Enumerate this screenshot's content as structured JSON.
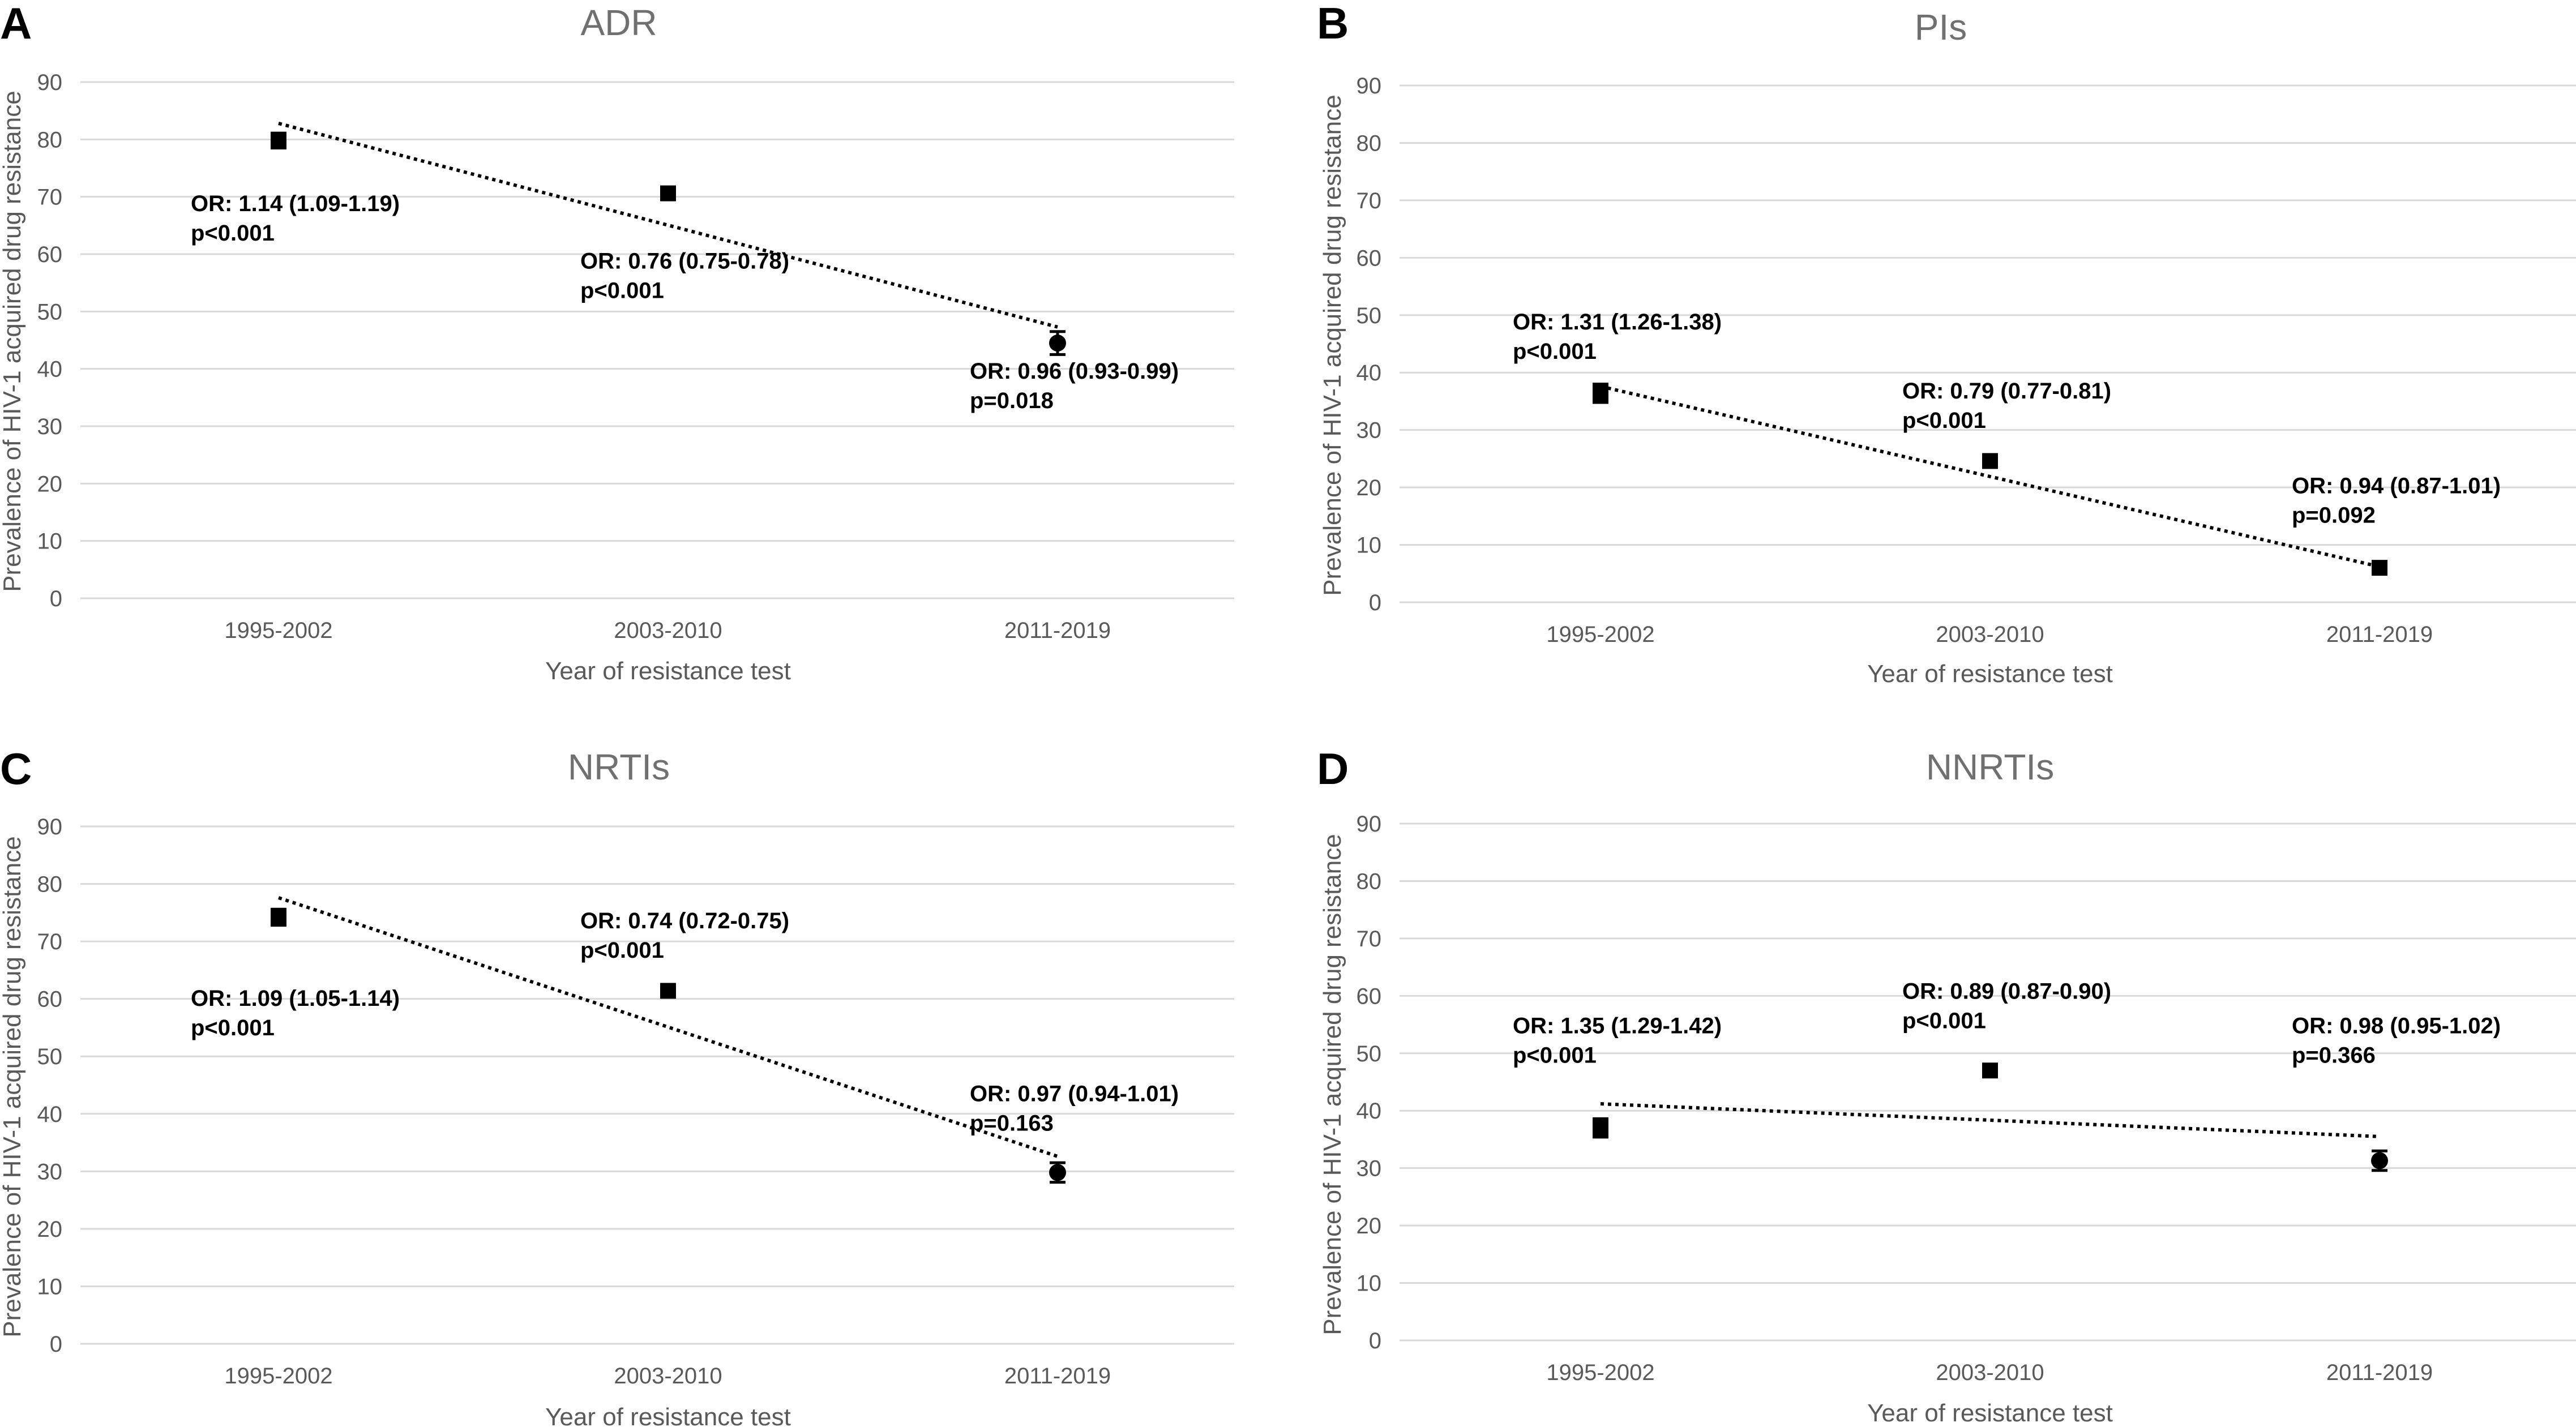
{
  "colors": {
    "marker": "#000000",
    "grid": "#d9d9d9",
    "tick_text": "#595959",
    "title_text": "#707070"
  },
  "chart_data": [
    {
      "panel": "A",
      "type": "scatter",
      "title": "ADR",
      "xlabel": "Year of resistance test",
      "ylabel": "Prevalence of HIV-1 acquired drug resistance",
      "categories": [
        "1995-2002",
        "2003-2010",
        "2011-2019"
      ],
      "ylim": [
        0,
        90
      ],
      "yticks": [
        0,
        10,
        20,
        30,
        40,
        50,
        60,
        70,
        80,
        90
      ],
      "grid": true,
      "values": [
        79.8,
        70.6,
        44.5
      ],
      "err": [
        1.3,
        0.8,
        2.0
      ],
      "markers": [
        "square",
        "square",
        "circle"
      ],
      "trend": {
        "start": 82.8,
        "end": 47.3
      },
      "annotations": [
        {
          "category": 0,
          "y": 67.5,
          "line1": "OR: 1.14 (1.09-1.19)",
          "line2": "p<0.001"
        },
        {
          "category": 1,
          "y": 57.5,
          "line1": "OR: 0.76 (0.75-0.78)",
          "line2": "p<0.001"
        },
        {
          "category": 2,
          "y": 38.3,
          "line1": "OR: 0.96 (0.93-0.99)",
          "line2": "p=0.018"
        }
      ]
    },
    {
      "panel": "B",
      "type": "scatter",
      "title": "PIs",
      "xlabel": "Year of resistance test",
      "ylabel": "Prevalence of HIV-1 acquired drug resistance",
      "categories": [
        "1995-2002",
        "2003-2010",
        "2011-2019"
      ],
      "ylim": [
        0,
        90
      ],
      "yticks": [
        0,
        10,
        20,
        30,
        40,
        50,
        60,
        70,
        80,
        90
      ],
      "grid": true,
      "values": [
        36.4,
        24.6,
        6.0
      ],
      "err": [
        1.6,
        0.8,
        0.8
      ],
      "markers": [
        "square",
        "square",
        "square"
      ],
      "trend": {
        "start": 37.6,
        "end": 6.2
      },
      "annotations": [
        {
          "category": 0,
          "y": 47.5,
          "line1": "OR: 1.31 (1.26-1.38)",
          "line2": "p<0.001"
        },
        {
          "category": 1,
          "y": 35.5,
          "line1": "OR: 0.79 (0.77-0.81)",
          "line2": "p<0.001"
        },
        {
          "category": 2,
          "y": 19.0,
          "line1": "OR: 0.94 (0.87-1.01)",
          "line2": "p=0.092"
        }
      ]
    },
    {
      "panel": "C",
      "type": "scatter",
      "title": "NRTIs",
      "xlabel": "Year of resistance test",
      "ylabel": "Prevalence of HIV-1 acquired drug resistance",
      "categories": [
        "1995-2002",
        "2003-2010",
        "2011-2019"
      ],
      "ylim": [
        0,
        90
      ],
      "yticks": [
        0,
        10,
        20,
        30,
        40,
        50,
        60,
        70,
        80,
        90
      ],
      "grid": true,
      "values": [
        74.2,
        61.4,
        29.8
      ],
      "err": [
        1.4,
        0.8,
        1.7
      ],
      "markers": [
        "square",
        "square",
        "circle"
      ],
      "trend": {
        "start": 77.6,
        "end": 32.6
      },
      "annotations": [
        {
          "category": 0,
          "y": 58.8,
          "line1": "OR: 1.09 (1.05-1.14)",
          "line2": "p<0.001"
        },
        {
          "category": 1,
          "y": 72.3,
          "line1": "OR: 0.74 (0.72-0.75)",
          "line2": "p<0.001"
        },
        {
          "category": 2,
          "y": 42.2,
          "line1": "OR: 0.97 (0.94-1.01)",
          "line2": "p=0.163"
        }
      ]
    },
    {
      "panel": "D",
      "type": "scatter",
      "title": "NNRTIs",
      "xlabel": "Year of resistance test",
      "ylabel": "Prevalence of HIV-1 acquired drug resistance",
      "categories": [
        "1995-2002",
        "2003-2010",
        "2011-2019"
      ],
      "ylim": [
        0,
        90
      ],
      "yticks": [
        0,
        10,
        20,
        30,
        40,
        50,
        60,
        70,
        80,
        90
      ],
      "grid": true,
      "values": [
        37.0,
        47.0,
        31.3
      ],
      "err": [
        1.6,
        0.8,
        1.7
      ],
      "markers": [
        "square",
        "square",
        "circle"
      ],
      "trend": {
        "start": 41.2,
        "end": 35.5
      },
      "annotations": [
        {
          "category": 0,
          "y": 53.5,
          "line1": "OR: 1.35 (1.29-1.42)",
          "line2": "p<0.001"
        },
        {
          "category": 1,
          "y": 59.5,
          "line1": "OR: 0.89 (0.87-0.90)",
          "line2": "p<0.001"
        },
        {
          "category": 2,
          "y": 53.5,
          "line1": "OR: 0.98 (0.95-1.02)",
          "line2": "p=0.366"
        }
      ]
    }
  ]
}
